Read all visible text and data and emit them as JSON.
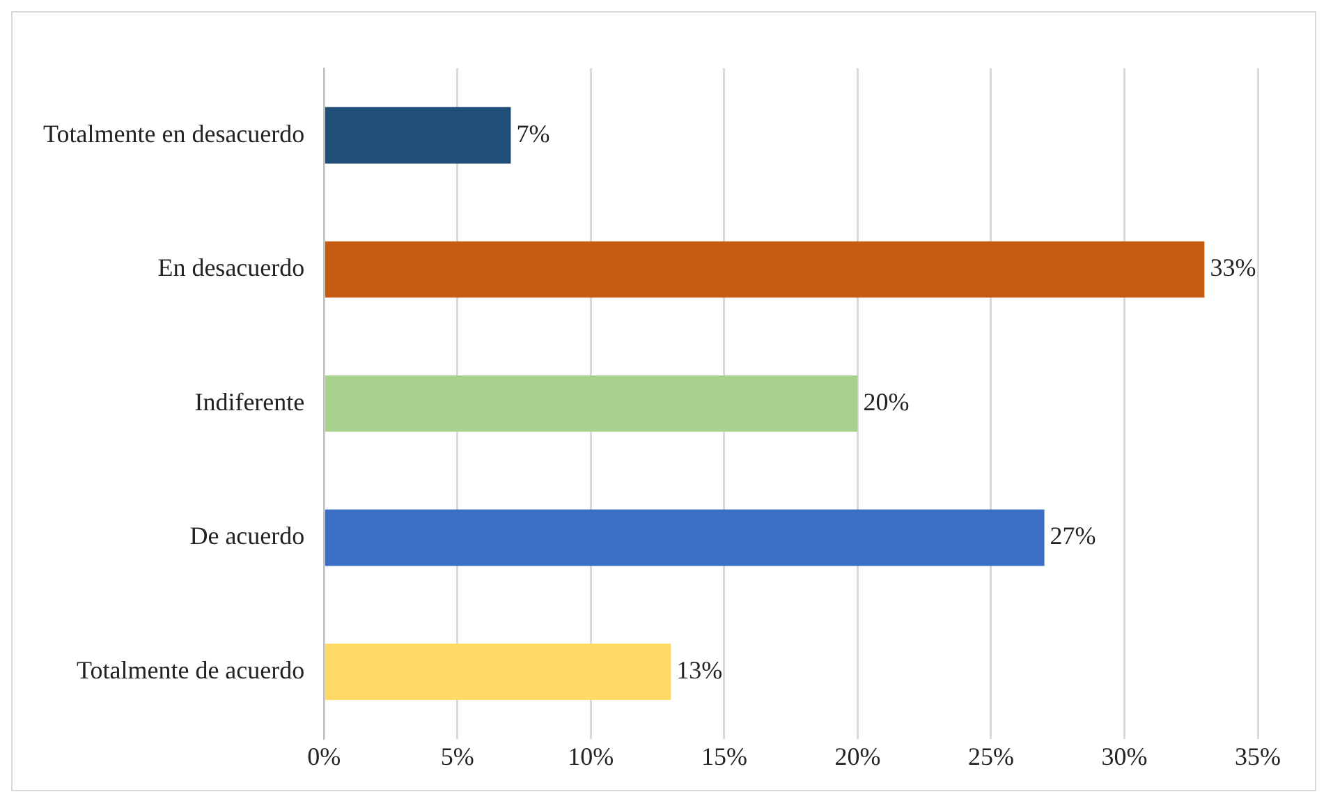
{
  "chart_data": {
    "type": "bar",
    "orientation": "horizontal",
    "categories": [
      "Totalmente en desacuerdo",
      "En desacuerdo",
      "Indiferente",
      "De acuerdo",
      "Totalmente de acuerdo"
    ],
    "values": [
      7,
      33,
      20,
      27,
      13
    ],
    "colors": [
      "#1f4e79",
      "#c55a11",
      "#a9d18e",
      "#3b6fc6",
      "#ffd966"
    ],
    "value_labels": [
      "7%",
      "33%",
      "20%",
      "27%",
      "13%"
    ],
    "xlim": [
      0,
      35
    ],
    "xticks": [
      {
        "value": 0,
        "label": "0%"
      },
      {
        "value": 5,
        "label": "5%"
      },
      {
        "value": 10,
        "label": "10%"
      },
      {
        "value": 15,
        "label": "15%"
      },
      {
        "value": 20,
        "label": "20%"
      },
      {
        "value": 25,
        "label": "25%"
      },
      {
        "value": 30,
        "label": "30%"
      },
      {
        "value": 35,
        "label": "35%"
      }
    ],
    "grid": "x"
  }
}
